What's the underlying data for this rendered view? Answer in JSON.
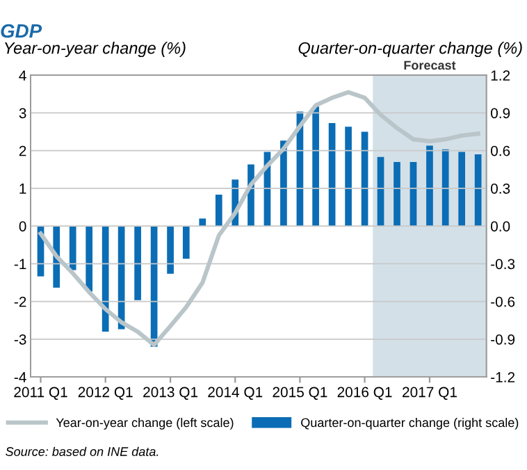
{
  "chart_data": {
    "type": "bar",
    "title": "GDP",
    "ylabel": "Year-on-year change (%)",
    "y2label": "Quarter-on-quarter change (%)",
    "x": [
      "2011-02-15",
      "2011-05-15",
      "2011-08-15",
      "2011-11-15",
      "2012-02-15",
      "2012-05-15",
      "2012-08-15",
      "2012-11-15",
      "2013-02-15",
      "2013-05-15",
      "2013-08-15",
      "2013-11-15",
      "2014-02-15",
      "2014-05-15",
      "2014-08-15",
      "2014-11-15",
      "2015-02-15",
      "2015-05-15",
      "2015-08-15",
      "2015-11-15",
      "2016-02-15",
      "2016-05-15",
      "2016-08-15",
      "2016-11-15",
      "2017-02-15",
      "2017-05-15",
      "2017-08-15",
      "2017-11-15"
    ],
    "xlim": [
      "2010-12-20",
      "2018-01-01"
    ],
    "xticks": [
      {
        "value": "2011-02-15",
        "label": "2011 Q1"
      },
      {
        "value": "2012-02-15",
        "label": "2012 Q1"
      },
      {
        "value": "2013-02-15",
        "label": "2013 Q1"
      },
      {
        "value": "2014-02-15",
        "label": "2014 Q1"
      },
      {
        "value": "2015-02-15",
        "label": "2015 Q1"
      },
      {
        "value": "2016-02-15",
        "label": "2016 Q1"
      },
      {
        "value": "2017-02-15",
        "label": "2017 Q1"
      }
    ],
    "series": [
      {
        "name": "Year-on-year change (left scale)",
        "type": "line",
        "axis": "y",
        "color": "#b9c5c9",
        "values": [
          -0.2,
          -0.8,
          -1.25,
          -1.75,
          -2.2,
          -2.55,
          -2.8,
          -3.15,
          -2.65,
          -2.15,
          -1.5,
          -0.25,
          0.35,
          1.1,
          1.6,
          2.05,
          2.65,
          3.2,
          3.4,
          3.55,
          3.4,
          2.95,
          2.6,
          2.3,
          2.25,
          2.3,
          2.4,
          2.45
        ]
      },
      {
        "name": "Quarter-on-quarter change (right scale)",
        "axis": "y2",
        "color": "#0b6db5",
        "values": [
          -0.4,
          -0.49,
          -0.35,
          -0.52,
          -0.84,
          -0.82,
          -0.59,
          -0.96,
          -0.38,
          -0.26,
          0.06,
          0.25,
          0.37,
          0.49,
          0.59,
          0.68,
          0.91,
          0.95,
          0.82,
          0.79,
          0.75,
          0.55,
          0.51,
          0.51,
          0.64,
          0.61,
          0.59,
          0.57
        ]
      }
    ],
    "ylim": [
      -4,
      4
    ],
    "yticks": [
      -4,
      -3,
      -2,
      -1,
      0,
      1,
      2,
      3,
      4
    ],
    "y2lim": [
      -1.2,
      1.2
    ],
    "y2ticks": [
      -1.2,
      -0.9,
      -0.6,
      -0.3,
      {
        "value": 0,
        "label": "0.0"
      },
      0.3,
      0.6,
      0.9,
      1.2
    ],
    "bands": [
      {
        "axis": "x",
        "from": "2016-04-01",
        "to": "2018-01-01",
        "label": "Forecast",
        "color": "#d3e0e8"
      }
    ],
    "grid": "y",
    "legend": "bottom",
    "marker": "none",
    "line_style": "solid",
    "annotations": [
      "Source: based on INE data."
    ]
  }
}
